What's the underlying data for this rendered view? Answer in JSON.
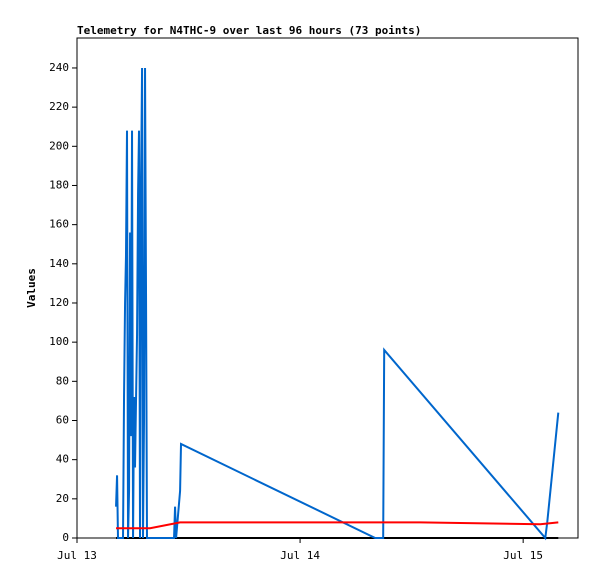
{
  "chart_data": {
    "type": "line",
    "title": "Telemetry for N4THC-9 over last 96 hours (73 points)",
    "y_label": "Values",
    "xlim": [
      0,
      53.9
    ],
    "xticks": [
      {
        "value": 0,
        "label": "Jul 13"
      },
      {
        "value": 24,
        "label": "Jul 14"
      },
      {
        "value": 48,
        "label": "Jul 15"
      }
    ],
    "ylim": [
      0,
      255.3
    ],
    "yticks": [
      0,
      20,
      40,
      60,
      80,
      100,
      120,
      140,
      160,
      180,
      200,
      220,
      240
    ],
    "series": [
      {
        "color": "#000000",
        "x": [
          4.2,
          51.78
        ],
        "values": [
          0,
          0
        ]
      },
      {
        "color": "#0066cc",
        "x": [
          4.2,
          4.31,
          4.41,
          4.95,
          5.06,
          5.17,
          5.27,
          5.38,
          5.49,
          5.6,
          5.71,
          5.81,
          5.92,
          6.03,
          6.14,
          6.24,
          6.46,
          6.57,
          6.67,
          6.78,
          6.89,
          7.0,
          7.1,
          7.21,
          7.32,
          7.43,
          7.53,
          10.44,
          10.55,
          10.66,
          11.09,
          11.19,
          32.08,
          32.94,
          33.05,
          50.38,
          50.59,
          51.78
        ],
        "values": [
          16,
          32,
          0,
          0,
          72,
          120,
          144,
          208,
          0,
          24,
          156,
          52,
          208,
          0,
          72,
          36,
          104,
          176,
          208,
          0,
          180,
          240,
          0,
          60,
          240,
          120,
          0,
          0,
          16,
          0,
          24,
          48,
          0,
          0,
          96,
          0,
          8,
          64
        ]
      },
      {
        "color": "#ff0000",
        "x": [
          4.2,
          7.86,
          11.09,
          36.92,
          49.84,
          51.78
        ],
        "values": [
          5,
          5,
          8,
          8,
          7,
          8
        ]
      }
    ]
  }
}
